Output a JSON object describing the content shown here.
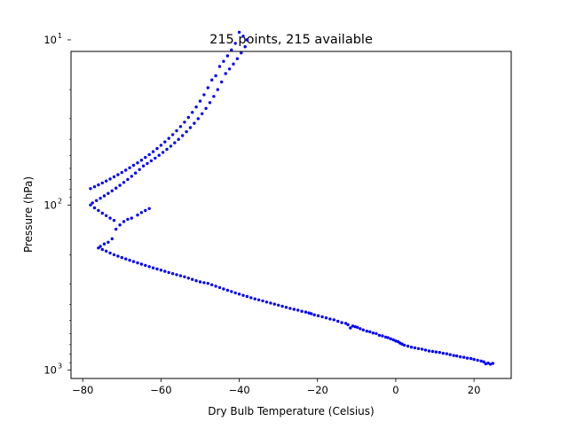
{
  "chart_data": {
    "type": "scatter",
    "title": "215 points, 215 available",
    "xlabel": "Dry Bulb Temperature (Celsius)",
    "ylabel": "Pressure (hPa)",
    "xlim": [
      -83,
      29.5
    ],
    "ylim_log10": [
      3.05,
      1.07
    ],
    "y_scale": "log",
    "y_inverted": true,
    "grid": false,
    "marker_color": "#0000ff",
    "xticks": [
      {
        "value": -80,
        "label": "−80"
      },
      {
        "value": -60,
        "label": "−60"
      },
      {
        "value": -40,
        "label": "−40"
      },
      {
        "value": -20,
        "label": "−20"
      },
      {
        "value": 0,
        "label": "0"
      },
      {
        "value": 20,
        "label": "20"
      }
    ],
    "yticks": [
      {
        "value": 10,
        "base": "10",
        "exp": "1"
      },
      {
        "value": 100,
        "base": "10",
        "exp": "2"
      },
      {
        "value": 1000,
        "base": "10",
        "exp": "3"
      }
    ],
    "yminor_ticks": [
      20,
      30,
      40,
      50,
      60,
      70,
      80,
      90,
      200,
      300,
      400,
      500,
      600,
      700,
      800,
      900
    ],
    "points": [
      [
        24.8,
        910
      ],
      [
        24.2,
        920
      ],
      [
        23.6,
        905
      ],
      [
        23.0,
        915
      ],
      [
        22.5,
        890
      ],
      [
        21.8,
        880
      ],
      [
        20.9,
        870
      ],
      [
        20.0,
        860
      ],
      [
        19.2,
        850
      ],
      [
        18.3,
        845
      ],
      [
        17.4,
        835
      ],
      [
        16.5,
        830
      ],
      [
        15.6,
        820
      ],
      [
        14.8,
        815
      ],
      [
        13.9,
        805
      ],
      [
        13.0,
        795
      ],
      [
        12.1,
        790
      ],
      [
        11.2,
        780
      ],
      [
        10.3,
        775
      ],
      [
        9.4,
        770
      ],
      [
        8.5,
        765
      ],
      [
        7.6,
        755
      ],
      [
        6.7,
        745
      ],
      [
        5.8,
        740
      ],
      [
        4.9,
        732
      ],
      [
        4.0,
        725
      ],
      [
        3.1,
        715
      ],
      [
        2.2,
        705
      ],
      [
        1.6,
        695
      ],
      [
        1.1,
        685
      ],
      [
        0.6,
        672
      ],
      [
        0.0,
        665
      ],
      [
        -0.6,
        655
      ],
      [
        -1.3,
        645
      ],
      [
        -2.0,
        635
      ],
      [
        -2.6,
        630
      ],
      [
        -3.4,
        620
      ],
      [
        -4.2,
        615
      ],
      [
        -5.0,
        600
      ],
      [
        -5.8,
        595
      ],
      [
        -6.6,
        585
      ],
      [
        -7.4,
        580
      ],
      [
        -8.3,
        570
      ],
      [
        -9.1,
        560
      ],
      [
        -9.8,
        550
      ],
      [
        -10.4,
        545
      ],
      [
        -11.0,
        540
      ],
      [
        -11.6,
        555
      ],
      [
        -12.2,
        530
      ],
      [
        -12.8,
        520
      ],
      [
        -13.8,
        515
      ],
      [
        -14.8,
        505
      ],
      [
        -15.8,
        495
      ],
      [
        -16.8,
        490
      ],
      [
        -17.8,
        482
      ],
      [
        -18.8,
        475
      ],
      [
        -19.8,
        468
      ],
      [
        -20.8,
        462
      ],
      [
        -21.6,
        455
      ],
      [
        -22.2,
        450
      ],
      [
        -23.0,
        445
      ],
      [
        -24.0,
        440
      ],
      [
        -25.0,
        433
      ],
      [
        -26.0,
        428
      ],
      [
        -27.0,
        422
      ],
      [
        -28.0,
        416
      ],
      [
        -29.0,
        410
      ],
      [
        -30.0,
        404
      ],
      [
        -31.0,
        398
      ],
      [
        -32.0,
        392
      ],
      [
        -33.0,
        387
      ],
      [
        -34.0,
        380
      ],
      [
        -35.0,
        375
      ],
      [
        -36.0,
        370
      ],
      [
        -37.0,
        364
      ],
      [
        -38.0,
        358
      ],
      [
        -39.0,
        352
      ],
      [
        -40.0,
        346
      ],
      [
        -41.0,
        340
      ],
      [
        -42.0,
        334
      ],
      [
        -43.0,
        328
      ],
      [
        -44.0,
        322
      ],
      [
        -45.0,
        316
      ],
      [
        -46.0,
        310
      ],
      [
        -47.0,
        304
      ],
      [
        -48.0,
        298
      ],
      [
        -49.0,
        295
      ],
      [
        -50.0,
        292
      ],
      [
        -51.0,
        287
      ],
      [
        -52.0,
        282
      ],
      [
        -53.0,
        277
      ],
      [
        -54.0,
        272
      ],
      [
        -55.0,
        268
      ],
      [
        -56.0,
        264
      ],
      [
        -57.0,
        260
      ],
      [
        -58.0,
        256
      ],
      [
        -59.0,
        252
      ],
      [
        -60.0,
        248
      ],
      [
        -61.0,
        244
      ],
      [
        -62.0,
        240
      ],
      [
        -63.0,
        236
      ],
      [
        -64.0,
        232
      ],
      [
        -65.0,
        228
      ],
      [
        -66.0,
        224
      ],
      [
        -67.0,
        220
      ],
      [
        -68.0,
        216
      ],
      [
        -69.0,
        212
      ],
      [
        -70.0,
        208
      ],
      [
        -71.0,
        204
      ],
      [
        -72.0,
        200
      ],
      [
        -73.0,
        195
      ],
      [
        -74.0,
        190
      ],
      [
        -75.0,
        186
      ],
      [
        -76.0,
        182
      ],
      [
        -75.5,
        178
      ],
      [
        -74.5,
        172
      ],
      [
        -73.5,
        168
      ],
      [
        -72.5,
        160
      ],
      [
        -71.5,
        140
      ],
      [
        -70.5,
        132
      ],
      [
        -69.5,
        126
      ],
      [
        -68.5,
        122
      ],
      [
        -67.5,
        120
      ],
      [
        -66.0,
        115
      ],
      [
        -65.0,
        111
      ],
      [
        -64.0,
        108
      ],
      [
        -63.0,
        105
      ],
      [
        -72.0,
        124
      ],
      [
        -73.0,
        120
      ],
      [
        -74.0,
        116
      ],
      [
        -75.0,
        112
      ],
      [
        -76.0,
        108
      ],
      [
        -77.0,
        104
      ],
      [
        -78.0,
        100
      ],
      [
        -77.5,
        97
      ],
      [
        -76.5,
        94
      ],
      [
        -75.5,
        91
      ],
      [
        -74.5,
        88
      ],
      [
        -73.5,
        85
      ],
      [
        -72.5,
        82
      ],
      [
        -71.5,
        79
      ],
      [
        -70.5,
        76
      ],
      [
        -69.5,
        73
      ],
      [
        -68.5,
        70
      ],
      [
        -67.5,
        67
      ],
      [
        -66.5,
        64
      ],
      [
        -65.5,
        61
      ],
      [
        -64.5,
        58
      ],
      [
        -63.5,
        56
      ],
      [
        -62.5,
        54
      ],
      [
        -61.5,
        52
      ],
      [
        -60.5,
        50
      ],
      [
        -59.5,
        48
      ],
      [
        -58.5,
        46
      ],
      [
        -57.5,
        44
      ],
      [
        -56.5,
        42
      ],
      [
        -55.5,
        40
      ],
      [
        -54.5,
        38
      ],
      [
        -53.5,
        36
      ],
      [
        -52.5,
        34
      ],
      [
        -51.5,
        32
      ],
      [
        -50.5,
        30
      ],
      [
        -49.5,
        28
      ],
      [
        -48.5,
        26
      ],
      [
        -47.5,
        24
      ],
      [
        -46.5,
        22
      ],
      [
        -45.5,
        20
      ],
      [
        -44.5,
        18
      ],
      [
        -43.5,
        16
      ],
      [
        -42.5,
        15
      ],
      [
        -41.5,
        14
      ],
      [
        -40.5,
        13
      ],
      [
        -39.5,
        12
      ],
      [
        -38.5,
        11
      ],
      [
        -38.0,
        10
      ],
      [
        -39.0,
        9.5
      ],
      [
        -40.0,
        9.0
      ],
      [
        -41.0,
        10.5
      ],
      [
        -42.0,
        11.5
      ],
      [
        -43.0,
        12.5
      ],
      [
        -44.0,
        13.5
      ],
      [
        -45.0,
        14.5
      ],
      [
        -46.0,
        16.5
      ],
      [
        -47.0,
        17.5
      ],
      [
        -48.0,
        19.5
      ],
      [
        -49.0,
        21.5
      ],
      [
        -50.0,
        23.5
      ],
      [
        -51.0,
        25.5
      ],
      [
        -52.0,
        27.5
      ],
      [
        -53.0,
        29.5
      ],
      [
        -54.0,
        31.5
      ],
      [
        -55.0,
        33.5
      ],
      [
        -56.0,
        35.5
      ],
      [
        -57.0,
        37.5
      ],
      [
        -58.0,
        39.5
      ],
      [
        -59.0,
        41.5
      ],
      [
        -60.0,
        43.5
      ],
      [
        -61.0,
        45.5
      ],
      [
        -62.0,
        47.5
      ],
      [
        -63.0,
        49.5
      ],
      [
        -64.0,
        51.5
      ],
      [
        -65.0,
        53.5
      ],
      [
        -66.0,
        55.5
      ],
      [
        -67.0,
        57.5
      ],
      [
        -68.0,
        59.5
      ],
      [
        -69.0,
        61.5
      ],
      [
        -70.0,
        63.5
      ],
      [
        -71.0,
        65.5
      ],
      [
        -72.0,
        67.5
      ],
      [
        -73.0,
        69.5
      ],
      [
        -74.0,
        71.5
      ],
      [
        -75.0,
        73.5
      ],
      [
        -76.0,
        75.5
      ],
      [
        -77.0,
        77.5
      ],
      [
        -78.0,
        79.5
      ]
    ]
  }
}
